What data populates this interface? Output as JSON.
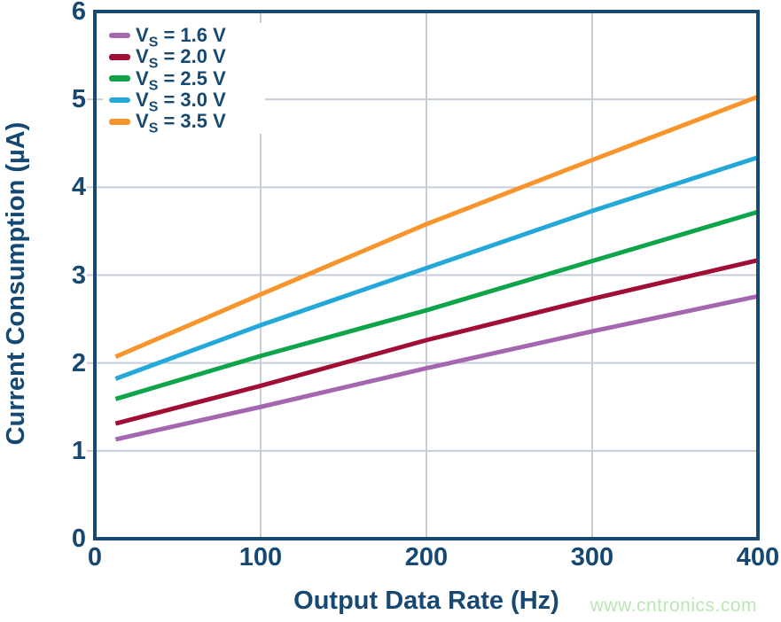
{
  "page": {
    "background": "#ffffff"
  },
  "watermark": {
    "text": "www.cntronics.com",
    "color": "#BCE5B6"
  },
  "chart_data": {
    "type": "line",
    "title": "",
    "xlabel": "Output Data Rate (Hz)",
    "ylabel": "Current Consumption (µA)",
    "xlim": [
      0,
      400
    ],
    "ylim": [
      0,
      6
    ],
    "xticks": [
      0,
      100,
      200,
      300,
      400
    ],
    "yticks": [
      0,
      1,
      2,
      3,
      4,
      5,
      6
    ],
    "grid": true,
    "legend_position": "top-left",
    "axis_color": "#164872",
    "grid_color": "#C5CED8",
    "x": [
      12.5,
      100,
      200,
      300,
      400
    ],
    "series": [
      {
        "name": "VS = 1.6 V",
        "label_parts": {
          "base": "V",
          "sub": "S",
          "rest": " = 1.6 V"
        },
        "color": "#A467AF",
        "values": [
          1.13,
          1.5,
          1.94,
          2.36,
          2.76
        ]
      },
      {
        "name": "VS = 2.0 V",
        "label_parts": {
          "base": "V",
          "sub": "S",
          "rest": " = 2.0 V"
        },
        "color": "#A00E35",
        "values": [
          1.31,
          1.74,
          2.26,
          2.73,
          3.17
        ]
      },
      {
        "name": "VS = 2.5 V",
        "label_parts": {
          "base": "V",
          "sub": "S",
          "rest": " = 2.5 V"
        },
        "color": "#0DA44A",
        "values": [
          1.59,
          2.08,
          2.6,
          3.16,
          3.72
        ]
      },
      {
        "name": "VS = 3.0 V",
        "label_parts": {
          "base": "V",
          "sub": "S",
          "rest": " = 3.0 V"
        },
        "color": "#24A8D8",
        "values": [
          1.82,
          2.43,
          3.08,
          3.73,
          4.34
        ]
      },
      {
        "name": "VS = 3.5 V",
        "label_parts": {
          "base": "V",
          "sub": "S",
          "rest": " = 3.5 V"
        },
        "color": "#F7952C",
        "values": [
          2.07,
          2.78,
          3.58,
          4.31,
          5.03
        ]
      }
    ]
  }
}
